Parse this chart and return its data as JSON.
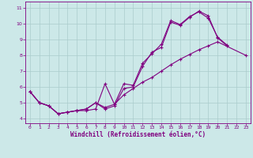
{
  "background_color": "#cce8e8",
  "grid_color": "#aacccc",
  "line_color": "#800080",
  "xlabel": "Windchill (Refroidissement éolien,°C)",
  "ylim": [
    3.7,
    11.4
  ],
  "xlim": [
    -0.5,
    23.5
  ],
  "yticks": [
    4,
    5,
    6,
    7,
    8,
    9,
    10,
    11
  ],
  "xticks": [
    0,
    1,
    2,
    3,
    4,
    5,
    6,
    7,
    8,
    9,
    10,
    11,
    12,
    13,
    14,
    15,
    16,
    17,
    18,
    19,
    20,
    21,
    22,
    23
  ],
  "line1_x": [
    0,
    1,
    2,
    3,
    4,
    5,
    6,
    7,
    8,
    9,
    10,
    11,
    12,
    13,
    14,
    15,
    16,
    17,
    18,
    19,
    20,
    21
  ],
  "line1_y": [
    5.7,
    5.0,
    4.8,
    4.3,
    4.4,
    4.5,
    4.6,
    5.0,
    4.6,
    4.8,
    5.9,
    6.0,
    7.3,
    8.2,
    8.5,
    10.1,
    9.9,
    10.4,
    10.8,
    10.5,
    9.1,
    8.6
  ],
  "line2_x": [
    0,
    1,
    2,
    3,
    4,
    5,
    6,
    7,
    8,
    9,
    10,
    11,
    12,
    13,
    14,
    15,
    16,
    17,
    18,
    19,
    20,
    21
  ],
  "line2_y": [
    5.7,
    5.0,
    4.8,
    4.3,
    4.4,
    4.5,
    4.5,
    4.6,
    6.2,
    4.9,
    6.2,
    6.1,
    7.5,
    8.1,
    8.7,
    10.2,
    9.95,
    10.45,
    10.75,
    10.35,
    9.15,
    8.65
  ],
  "line3_x": [
    0,
    1,
    2,
    3,
    4,
    5,
    6,
    7,
    8,
    9,
    10,
    11,
    12,
    13,
    14,
    15,
    16,
    17,
    18,
    19,
    20,
    23
  ],
  "line3_y": [
    5.7,
    5.0,
    4.8,
    4.3,
    4.4,
    4.5,
    4.6,
    5.0,
    4.7,
    4.9,
    5.5,
    5.9,
    6.3,
    6.6,
    7.0,
    7.4,
    7.75,
    8.05,
    8.35,
    8.6,
    8.85,
    8.0
  ],
  "tick_fontsize": 4.5,
  "xlabel_fontsize": 5.5
}
